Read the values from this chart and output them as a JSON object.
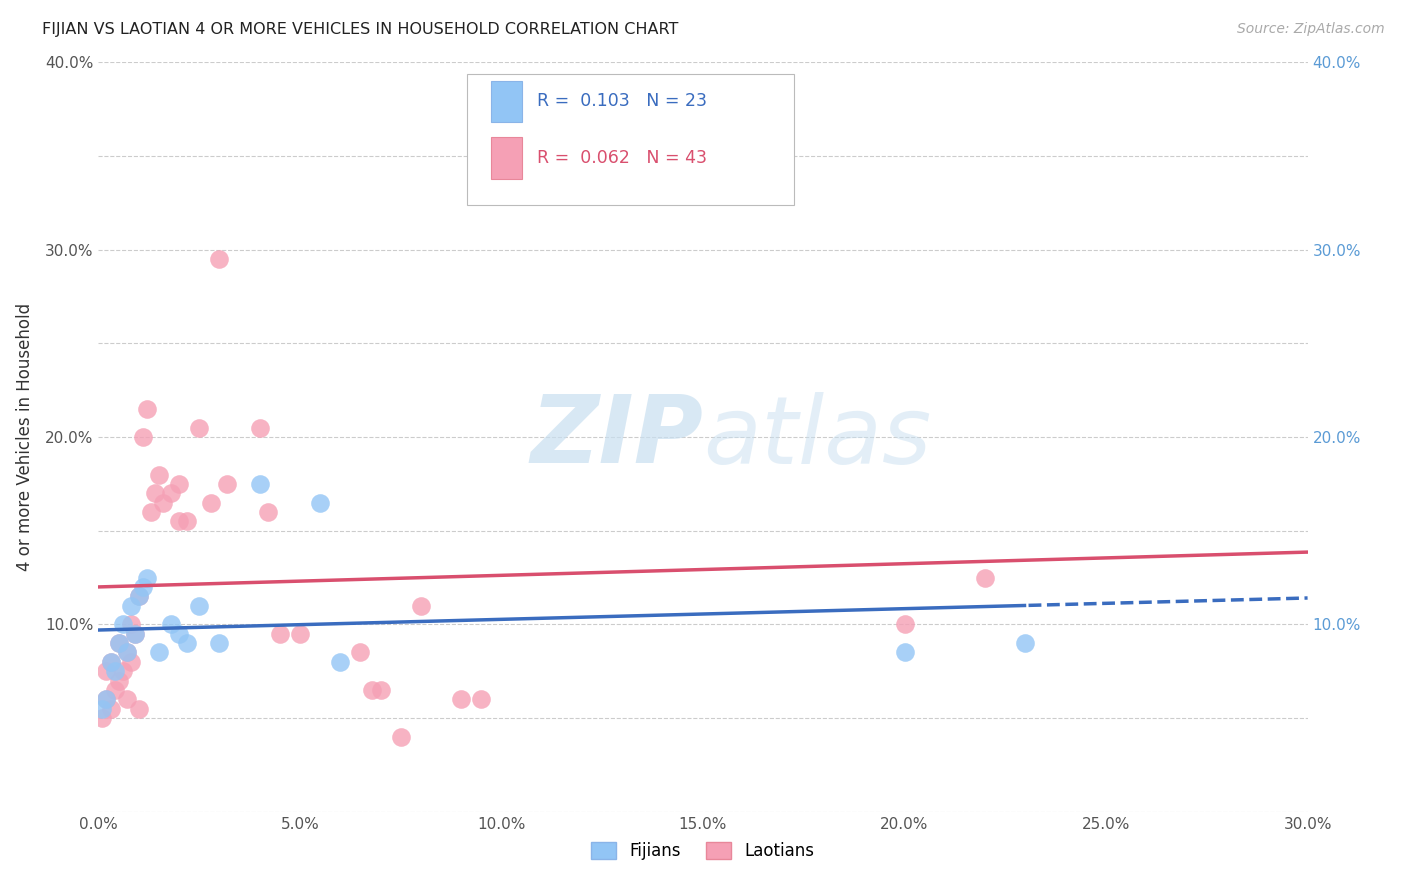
{
  "title": "FIJIAN VS LAOTIAN 4 OR MORE VEHICLES IN HOUSEHOLD CORRELATION CHART",
  "source": "Source: ZipAtlas.com",
  "ylabel": "4 or more Vehicles in Household",
  "legend_label1": "Fijians",
  "legend_label2": "Laotians",
  "r1": 0.103,
  "n1": 23,
  "r2": 0.062,
  "n2": 43,
  "xlim": [
    0.0,
    0.3
  ],
  "ylim": [
    0.0,
    0.4
  ],
  "color_fijian": "#92c5f5",
  "color_laotian": "#f5a0b5",
  "line_color_fijian": "#3a6cbf",
  "line_color_laotian": "#d94f6e",
  "watermark_zip": "ZIP",
  "watermark_atlas": "atlas",
  "background_color": "#ffffff",
  "fijian_x": [
    0.001,
    0.002,
    0.003,
    0.004,
    0.005,
    0.006,
    0.007,
    0.008,
    0.009,
    0.01,
    0.011,
    0.012,
    0.015,
    0.018,
    0.02,
    0.022,
    0.025,
    0.03,
    0.04,
    0.055,
    0.06,
    0.2,
    0.23
  ],
  "fijian_y": [
    0.055,
    0.06,
    0.08,
    0.075,
    0.09,
    0.1,
    0.085,
    0.11,
    0.095,
    0.115,
    0.12,
    0.125,
    0.085,
    0.1,
    0.095,
    0.09,
    0.11,
    0.09,
    0.175,
    0.165,
    0.08,
    0.085,
    0.09
  ],
  "laotian_x": [
    0.001,
    0.002,
    0.002,
    0.003,
    0.003,
    0.004,
    0.005,
    0.005,
    0.006,
    0.007,
    0.007,
    0.008,
    0.008,
    0.009,
    0.01,
    0.01,
    0.011,
    0.012,
    0.013,
    0.014,
    0.015,
    0.016,
    0.018,
    0.02,
    0.02,
    0.022,
    0.025,
    0.028,
    0.03,
    0.032,
    0.04,
    0.042,
    0.045,
    0.05,
    0.065,
    0.068,
    0.07,
    0.075,
    0.08,
    0.09,
    0.095,
    0.2,
    0.22
  ],
  "laotian_y": [
    0.05,
    0.06,
    0.075,
    0.055,
    0.08,
    0.065,
    0.07,
    0.09,
    0.075,
    0.06,
    0.085,
    0.08,
    0.1,
    0.095,
    0.115,
    0.055,
    0.2,
    0.215,
    0.16,
    0.17,
    0.18,
    0.165,
    0.17,
    0.155,
    0.175,
    0.155,
    0.205,
    0.165,
    0.295,
    0.175,
    0.205,
    0.16,
    0.095,
    0.095,
    0.085,
    0.065,
    0.065,
    0.04,
    0.11,
    0.06,
    0.06,
    0.1,
    0.125
  ]
}
